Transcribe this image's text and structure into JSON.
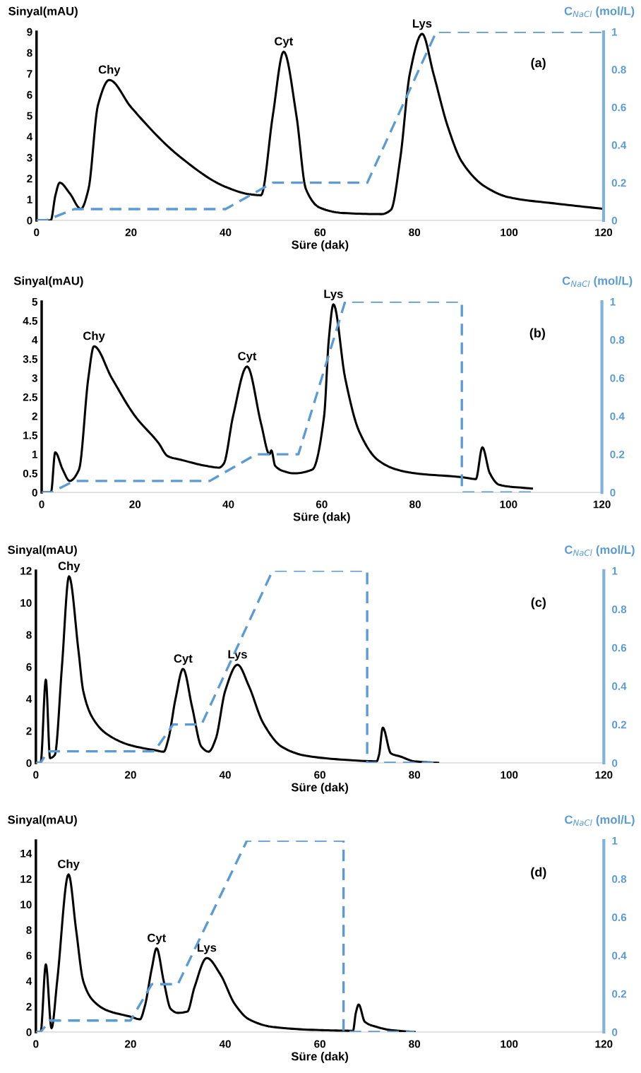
{
  "chart_data": [
    {
      "type": "line",
      "xlabel": "Süre (dak)",
      "ylabel": "Sinyal(mAU)",
      "y2label": "C$_{NaCl}$ (mol/L)",
      "xlim": [
        0,
        120
      ],
      "xticks": [
        0,
        20,
        40,
        60,
        80,
        100,
        120
      ],
      "ylim": [
        0,
        9
      ],
      "yticks": [
        0,
        1,
        2,
        3,
        4,
        5,
        6,
        7,
        8,
        9
      ],
      "y2lim": [
        0,
        1
      ],
      "y2ticks": [
        0,
        0.2,
        0.4,
        0.6,
        0.8,
        1
      ],
      "grid": false,
      "marker": "none",
      "annotations": [
        {
          "text": "Chy",
          "x": 15.4,
          "y": 6.7
        },
        {
          "text": "Cyt",
          "x": 52.3,
          "y": 8.05
        },
        {
          "text": "Lys",
          "x": 81.6,
          "y": 8.9
        },
        "(a)"
      ],
      "series": [
        {
          "color": "#000000",
          "line_style": "solid",
          "x": [
            0,
            3,
            4,
            4.9,
            7,
            9.4,
            11,
            13,
            15.4,
            20,
            30,
            40,
            45,
            47.5,
            50,
            52.3,
            55,
            57,
            60,
            65,
            73,
            75,
            77,
            79,
            81.6,
            84,
            87,
            90,
            95,
            100,
            110,
            120
          ],
          "values": [
            0,
            0,
            1.2,
            1.8,
            1.3,
            0.55,
            1.5,
            5.5,
            6.7,
            5.4,
            3.1,
            1.6,
            1.25,
            1.2,
            5,
            8.05,
            5,
            1.5,
            0.6,
            0.35,
            0.3,
            0.5,
            3,
            7,
            8.9,
            7,
            4.5,
            2.8,
            1.6,
            1.1,
            0.8,
            0.55
          ]
        },
        {
          "color": "#5b9bd5",
          "line_style": "dashed",
          "axis": "y2",
          "x": [
            0,
            2,
            8,
            40,
            50,
            70,
            84.6,
            120
          ],
          "values": [
            0,
            0,
            0.06,
            0.06,
            0.2,
            0.2,
            1,
            1
          ]
        }
      ]
    },
    {
      "type": "line",
      "xlabel": "Süre (dak)",
      "ylabel": "Sinyal(mAU)",
      "y2label": "C$_{NaCl}$ (mol/L)",
      "xlim": [
        0,
        120
      ],
      "xticks": [
        0,
        20,
        40,
        60,
        80,
        100,
        120
      ],
      "ylim": [
        0,
        5
      ],
      "yticks": [
        0,
        0.5,
        1,
        1.5,
        2,
        2.5,
        3,
        3.5,
        4,
        4.5,
        5
      ],
      "y2lim": [
        0,
        1
      ],
      "y2ticks": [
        0,
        0.2,
        0.4,
        0.6,
        0.8,
        1
      ],
      "grid": false,
      "marker": "none",
      "annotations": [
        {
          "text": "Chy",
          "x": 11.2,
          "y": 3.83
        },
        {
          "text": "Cyt",
          "x": 44,
          "y": 3.3
        },
        {
          "text": "Lys",
          "x": 62.5,
          "y": 4.93
        },
        "(b)"
      ],
      "series": [
        {
          "color": "#000000",
          "line_style": "solid",
          "x": [
            0,
            2,
            2.9,
            4.5,
            6,
            8,
            10,
            11.2,
            15,
            20,
            25,
            27,
            30,
            35,
            38,
            39,
            41,
            44,
            47,
            48.8,
            49.2,
            50,
            52,
            54,
            58,
            60.5,
            61.5,
            62.5,
            65,
            68,
            72,
            76,
            80,
            90,
            93,
            94.4,
            96,
            98,
            105
          ],
          "values": [
            0,
            0,
            1.05,
            0.6,
            0.3,
            0.6,
            3,
            3.83,
            3.0,
            2.0,
            1.3,
            0.95,
            0.85,
            0.7,
            0.65,
            0.75,
            2,
            3.3,
            1.8,
            1.0,
            1.1,
            0.7,
            0.55,
            0.5,
            0.6,
            2,
            4,
            4.93,
            3.0,
            1.6,
            0.85,
            0.6,
            0.5,
            0.4,
            0.35,
            1.18,
            0.5,
            0.2,
            0.1
          ]
        },
        {
          "color": "#5b9bd5",
          "line_style": "dashed",
          "axis": "y2",
          "x": [
            0,
            2,
            7,
            36,
            46,
            55,
            65,
            90,
            90,
            105
          ],
          "values": [
            0,
            0,
            0.06,
            0.06,
            0.2,
            0.2,
            1,
            1,
            0,
            0
          ]
        }
      ]
    },
    {
      "type": "line",
      "xlabel": "Süre (dak)",
      "ylabel": "Sinyal(mAU)",
      "y2label": "C$_{NaCl}$ (mol/L)",
      "xlim": [
        0,
        120
      ],
      "xticks": [
        0,
        20,
        40,
        60,
        80,
        100,
        120
      ],
      "ylim": [
        0,
        12
      ],
      "yticks": [
        0,
        2,
        4,
        6,
        8,
        10,
        12
      ],
      "y2lim": [
        0,
        1
      ],
      "y2ticks": [
        0,
        0.2,
        0.4,
        0.6,
        0.8,
        1
      ],
      "grid": false,
      "marker": "none",
      "annotations": [
        {
          "text": "Chy",
          "x": 7,
          "y": 11.65
        },
        {
          "text": "Cyt",
          "x": 31.1,
          "y": 5.87
        },
        {
          "text": "Lys",
          "x": 42.6,
          "y": 6.13
        },
        "(c)"
      ],
      "series": [
        {
          "color": "#000000",
          "line_style": "solid",
          "x": [
            0,
            1,
            2.1,
            3,
            4,
            5.5,
            7,
            9,
            10,
            12,
            15,
            20,
            25,
            27,
            28,
            29.5,
            31.1,
            33,
            35,
            36.5,
            38,
            40,
            42.6,
            45,
            48,
            52,
            57,
            65,
            72,
            72.5,
            73.3,
            75,
            77,
            80,
            85
          ],
          "values": [
            0,
            0,
            5.2,
            0.3,
            0.5,
            6,
            11.65,
            7,
            4.5,
            2.8,
            1.8,
            1.1,
            0.8,
            0.7,
            1.5,
            4,
            5.87,
            3.5,
            1.0,
            0.7,
            1.5,
            4.5,
            6.13,
            4.8,
            2.5,
            1.0,
            0.45,
            0.2,
            0.1,
            0.5,
            2.2,
            0.6,
            0.4,
            0.1,
            0
          ]
        },
        {
          "color": "#5b9bd5",
          "line_style": "dashed",
          "axis": "y2",
          "x": [
            0,
            1,
            2.5,
            25,
            29,
            35,
            50,
            70,
            70,
            85
          ],
          "values": [
            0,
            0,
            0.06,
            0.06,
            0.2,
            0.2,
            1,
            1,
            0,
            0
          ]
        }
      ]
    },
    {
      "type": "line",
      "xlabel": "Süre (dak)",
      "ylabel": "Sinyal(mAU)",
      "y2label": "C$_{NaCl}$ (mol/L)",
      "xlim": [
        0,
        120
      ],
      "xticks": [
        0,
        20,
        40,
        60,
        80,
        100,
        120
      ],
      "ylim": [
        0,
        15
      ],
      "yticks": [
        0,
        2,
        4,
        6,
        8,
        10,
        12,
        14
      ],
      "y2lim": [
        0,
        1
      ],
      "y2ticks": [
        0,
        0.2,
        0.4,
        0.6,
        0.8,
        1
      ],
      "grid": false,
      "marker": "none",
      "annotations": [
        {
          "text": "Chy",
          "x": 6.9,
          "y": 12.35
        },
        {
          "text": "Cyt",
          "x": 25.5,
          "y": 6.56
        },
        {
          "text": "Lys",
          "x": 36.1,
          "y": 5.8
        },
        "(d)"
      ],
      "series": [
        {
          "color": "#000000",
          "line_style": "solid",
          "x": [
            0,
            1,
            2.1,
            3.3,
            4.5,
            6.9,
            8.5,
            10,
            12,
            15,
            20,
            22,
            23,
            24.5,
            25.5,
            27,
            28.5,
            30,
            32,
            33.5,
            36.1,
            39,
            42,
            45,
            50,
            60,
            67,
            67.6,
            68.2,
            69.5,
            72,
            75,
            80
          ],
          "values": [
            0,
            0,
            5.3,
            0.3,
            4,
            12.35,
            8,
            4,
            2.5,
            1.7,
            1.2,
            1.0,
            2,
            5,
            6.56,
            4,
            1.8,
            1.5,
            1.6,
            3.5,
            5.8,
            4.5,
            2.2,
            1.0,
            0.4,
            0.15,
            0.1,
            1.5,
            2.15,
            0.8,
            0.4,
            0.15,
            0
          ]
        },
        {
          "color": "#5b9bd5",
          "line_style": "dashed",
          "axis": "y2",
          "x": [
            0,
            1,
            3,
            20,
            24.5,
            30,
            44.6,
            65,
            65,
            80
          ],
          "values": [
            0,
            0,
            0.06,
            0.06,
            0.25,
            0.25,
            1,
            1,
            0,
            0
          ]
        }
      ]
    }
  ]
}
